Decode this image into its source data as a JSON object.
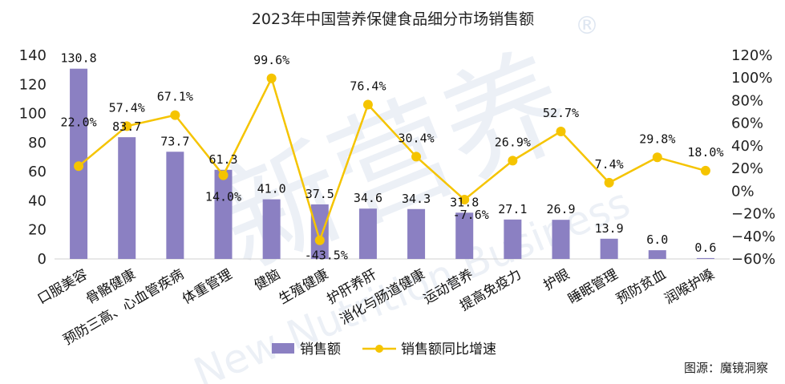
{
  "chart_data": {
    "type": "bar",
    "title": "2023年中国营养保健食品细分市场销售额",
    "categories": [
      "口服美容",
      "骨骼健康",
      "预防三高、心血管疾病",
      "体重管理",
      "健脑",
      "生殖健康",
      "护肝养肝",
      "消化与肠道健康",
      "运动营养",
      "提高免疫力",
      "护眼",
      "睡眠管理",
      "预防贫血",
      "润喉护嗓"
    ],
    "series": [
      {
        "name": "销售额",
        "type": "bar",
        "axis": "left",
        "color": "#8b80c2",
        "values": [
          130.8,
          83.7,
          73.7,
          61.3,
          41.0,
          37.5,
          34.6,
          34.3,
          31.8,
          27.1,
          26.9,
          13.9,
          6.0,
          0.6
        ],
        "labels": [
          "130.8",
          "83.7",
          "73.7",
          "61.3",
          "41.0",
          "37.5",
          "34.6",
          "34.3",
          "31.8",
          "27.1",
          "26.9",
          "13.9",
          "6.0",
          "0.6"
        ]
      },
      {
        "name": "销售额同比增速",
        "type": "line",
        "axis": "right",
        "color": "#f5c400",
        "values": [
          22.0,
          57.4,
          67.1,
          14.0,
          99.6,
          -43.5,
          76.4,
          30.4,
          -7.6,
          26.9,
          52.7,
          7.4,
          29.8,
          18.0
        ],
        "labels": [
          "22.0%",
          "57.4%",
          "67.1%",
          "14.0%",
          "99.6%",
          "-43.5%",
          "76.4%",
          "30.4%",
          "-7.6%",
          "26.9%",
          "52.7%",
          "7.4%",
          "29.8%",
          "18.0%"
        ]
      }
    ],
    "y_left": {
      "min": 0,
      "max": 140,
      "ticks": [
        "0",
        "20",
        "40",
        "60",
        "80",
        "100",
        "120",
        "140"
      ]
    },
    "y_right": {
      "min": -60,
      "max": 120,
      "ticks": [
        "−60%",
        "−40%",
        "−20%",
        "0%",
        "20%",
        "40%",
        "60%",
        "80%",
        "100%",
        "120%"
      ]
    },
    "grid": false,
    "legend": "bottom"
  },
  "watermark": {
    "line1": "新营养",
    "line2": "New Nutrition Business",
    "mark": "®"
  },
  "source": "图源：魔镜洞察"
}
